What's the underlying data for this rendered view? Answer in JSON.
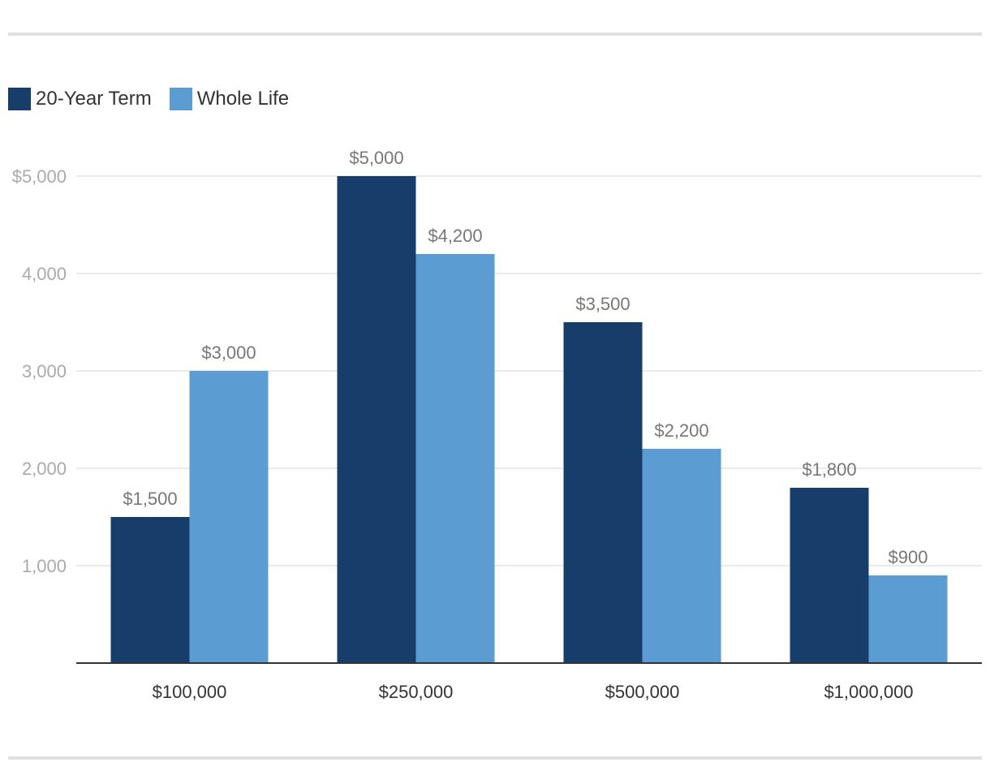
{
  "chart_data": {
    "type": "bar",
    "categories": [
      "$100,000",
      "$250,000",
      "$500,000",
      "$1,000,000"
    ],
    "series": [
      {
        "name": "20-Year Term",
        "color": "#173e6b",
        "values": [
          1500,
          5000,
          3500,
          1800
        ],
        "labels": [
          "$1,500",
          "$5,000",
          "$3,500",
          "$1,800"
        ]
      },
      {
        "name": "Whole Life",
        "color": "#5b9dd3",
        "values": [
          3000,
          4200,
          2200,
          900
        ],
        "labels": [
          "$3,000",
          "$4,200",
          "$2,200",
          "$900"
        ]
      }
    ],
    "yticks": [
      {
        "value": 1000,
        "label": "1,000"
      },
      {
        "value": 2000,
        "label": "2,000"
      },
      {
        "value": 3000,
        "label": "3,000"
      },
      {
        "value": 4000,
        "label": "4,000"
      },
      {
        "value": 5000,
        "label": "$5,000"
      }
    ],
    "ylim": [
      0,
      5000
    ],
    "grid": true,
    "legend_position": "top-left"
  }
}
